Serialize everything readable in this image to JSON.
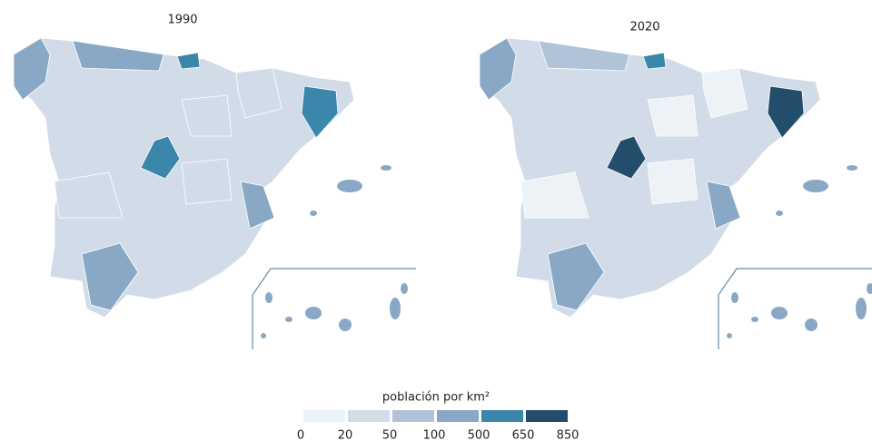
{
  "maps": [
    {
      "title": "1990"
    },
    {
      "title": "2020"
    }
  ],
  "legend": {
    "title": "población por km²",
    "ticks": [
      0,
      20,
      50,
      100,
      500,
      650,
      850
    ],
    "colors": [
      "#edf2f7",
      "#d2dce8",
      "#b0c3d9",
      "#88a8c6",
      "#3b86ab",
      "#234e6b"
    ]
  }
}
